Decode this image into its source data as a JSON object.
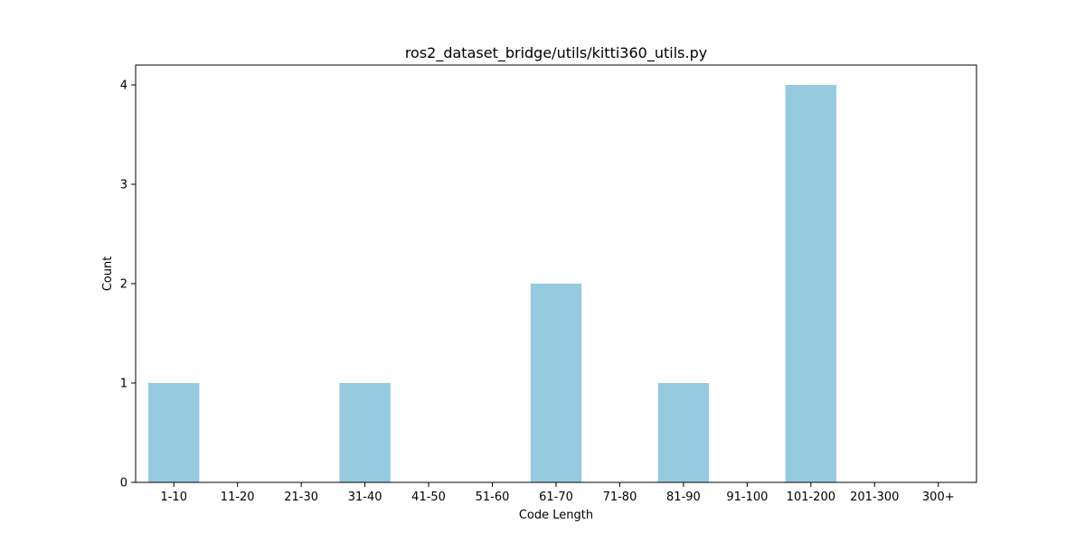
{
  "chart_data": {
    "type": "bar",
    "title": "ros2_dataset_bridge/utils/kitti360_utils.py",
    "xlabel": "Code Length",
    "ylabel": "Count",
    "categories": [
      "1-10",
      "11-20",
      "21-30",
      "31-40",
      "41-50",
      "51-60",
      "61-70",
      "71-80",
      "81-90",
      "91-100",
      "101-200",
      "201-300",
      "300+"
    ],
    "values": [
      1,
      0,
      0,
      1,
      0,
      0,
      2,
      0,
      1,
      0,
      4,
      0,
      0
    ],
    "ylim": [
      0,
      4.2
    ],
    "yticks": [
      0,
      1,
      2,
      3,
      4
    ],
    "bar_color": "#96cadf",
    "grid": false,
    "legend": "none"
  }
}
